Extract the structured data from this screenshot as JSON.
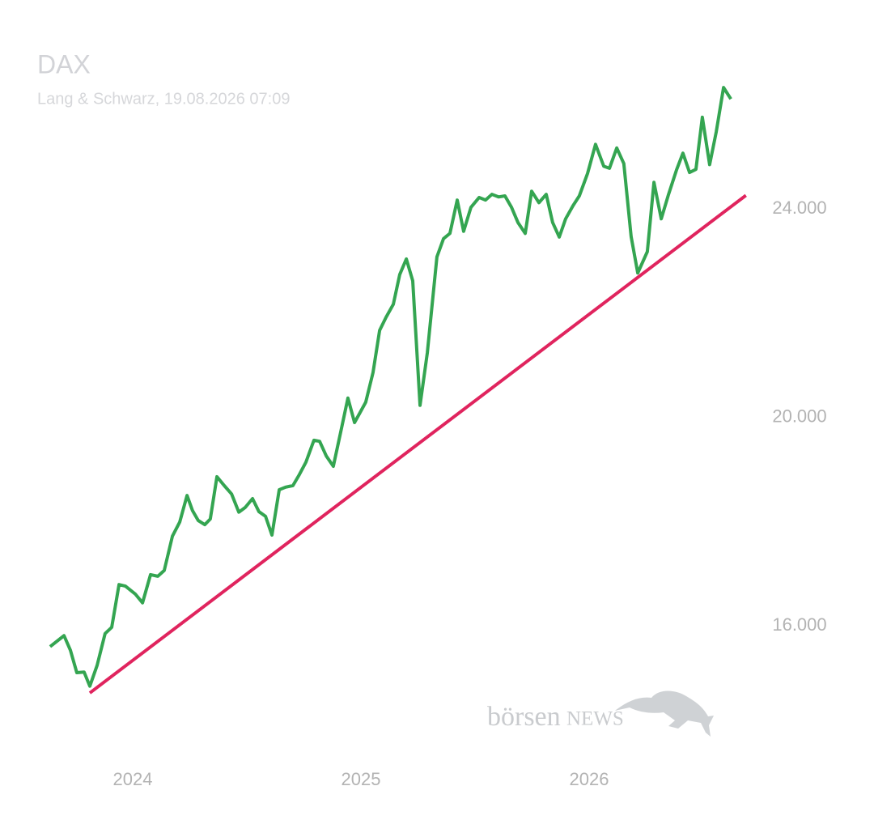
{
  "chart_data": {
    "type": "line",
    "title": "DAX",
    "subtitle": "Lang & Schwarz, 19.08.2026 07:09",
    "watermark": {
      "prefix": "börsen",
      "suffix": "NEWS"
    },
    "x": [
      2023.638,
      2023.699,
      2023.727,
      2023.755,
      2023.787,
      2023.812,
      2023.844,
      2023.879,
      2023.908,
      2023.94,
      2023.968,
      2024.011,
      2024.043,
      2024.078,
      2024.11,
      2024.138,
      2024.174,
      2024.206,
      2024.238,
      2024.262,
      2024.287,
      2024.316,
      2024.34,
      2024.369,
      2024.401,
      2024.433,
      2024.465,
      2024.493,
      2024.525,
      2024.553,
      2024.582,
      2024.61,
      2024.642,
      2024.67,
      2024.702,
      2024.73,
      2024.759,
      2024.794,
      2024.819,
      2024.848,
      2024.879,
      2024.911,
      2024.943,
      2024.972,
      2024.996,
      2025.021,
      2025.053,
      2025.082,
      2025.11,
      2025.142,
      2025.17,
      2025.199,
      2025.227,
      2025.259,
      2025.291,
      2025.333,
      2025.362,
      2025.39,
      2025.422,
      2025.45,
      2025.482,
      2025.518,
      2025.546,
      2025.574,
      2025.603,
      2025.631,
      2025.66,
      2025.688,
      2025.72,
      2025.748,
      2025.78,
      2025.812,
      2025.84,
      2025.869,
      2025.897,
      2025.929,
      2025.957,
      2025.993,
      2026.028,
      2026.064,
      2026.089,
      2026.121,
      2026.152,
      2026.184,
      2026.213,
      2026.255,
      2026.284,
      2026.316,
      2026.348,
      2026.383,
      2026.411,
      2026.44,
      2026.468,
      2026.496,
      2026.528,
      2026.557,
      2026.589,
      2026.621
    ],
    "series": [
      {
        "color": "#34a551",
        "values": [
          15600,
          15810,
          15530,
          15100,
          15110,
          14840,
          15240,
          15850,
          15970,
          16790,
          16760,
          16610,
          16440,
          16980,
          16950,
          17060,
          17720,
          17990,
          18500,
          18210,
          18020,
          17940,
          18050,
          18860,
          18690,
          18530,
          18180,
          18270,
          18440,
          18190,
          18100,
          17740,
          18610,
          18660,
          18690,
          18900,
          19140,
          19560,
          19540,
          19260,
          19060,
          19710,
          20370,
          19900,
          20090,
          20290,
          20860,
          21670,
          21920,
          22170,
          22740,
          23040,
          22620,
          20230,
          21240,
          23080,
          23430,
          23530,
          24170,
          23570,
          24030,
          24220,
          24170,
          24280,
          24230,
          24250,
          24030,
          23740,
          23530,
          24340,
          24120,
          24280,
          23740,
          23460,
          23810,
          24060,
          24250,
          24680,
          25240,
          24820,
          24780,
          25170,
          24870,
          23470,
          22770,
          23180,
          24510,
          23810,
          24280,
          24750,
          25070,
          24700,
          24760,
          25760,
          24850,
          25480,
          26330,
          26110
        ]
      },
      {
        "color": "#e0245e",
        "x": [
          2023.812,
          2026.687
        ],
        "values": [
          14710,
          24260
        ]
      }
    ],
    "xlim": [
      2023.6,
      2026.8
    ],
    "xticks": [
      2024,
      2025,
      2026
    ],
    "ylim": [
      14000,
      27000
    ],
    "yticks": [
      {
        "value": 16000,
        "label": "16.000"
      },
      {
        "value": 20000,
        "label": "20.000"
      },
      {
        "value": 24000,
        "label": "24.000"
      }
    ],
    "grid": false
  }
}
